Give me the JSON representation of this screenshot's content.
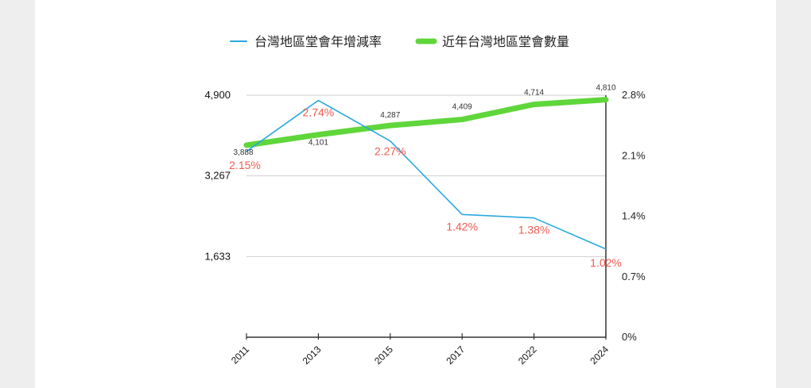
{
  "chart_data": {
    "type": "line",
    "categories": [
      "2011",
      "2013",
      "2015",
      "2017",
      "2022",
      "2024"
    ],
    "series": [
      {
        "name": "台灣地區堂會年增減率",
        "axis": "right",
        "color": "#29a8e0",
        "values": [
          2.15,
          2.74,
          2.27,
          1.42,
          1.38,
          1.02
        ],
        "labels": [
          "2.15%",
          "2.74%",
          "2.27%",
          "1.42%",
          "1.38%",
          "1.02%"
        ]
      },
      {
        "name": "近年台灣地區堂會數量",
        "axis": "left",
        "color": "#5fd63a",
        "values": [
          3888,
          4101,
          4287,
          4409,
          4714,
          4810
        ],
        "labels": [
          "3,888",
          "4,101",
          "4,287",
          "4,409",
          "4,714",
          "4,810"
        ]
      }
    ],
    "y_left": {
      "ticks": [
        1633,
        3267,
        4900
      ],
      "tick_labels": [
        "1,633",
        "3,267",
        "4,900"
      ],
      "range": [
        0,
        4900
      ]
    },
    "y_right": {
      "ticks": [
        0,
        0.7,
        1.4,
        2.1,
        2.8
      ],
      "tick_labels": [
        "0%",
        "0.7%",
        "1.4%",
        "2.1%",
        "2.8%"
      ],
      "range": [
        0,
        2.8
      ]
    },
    "grid": true,
    "legend_position": "top"
  }
}
